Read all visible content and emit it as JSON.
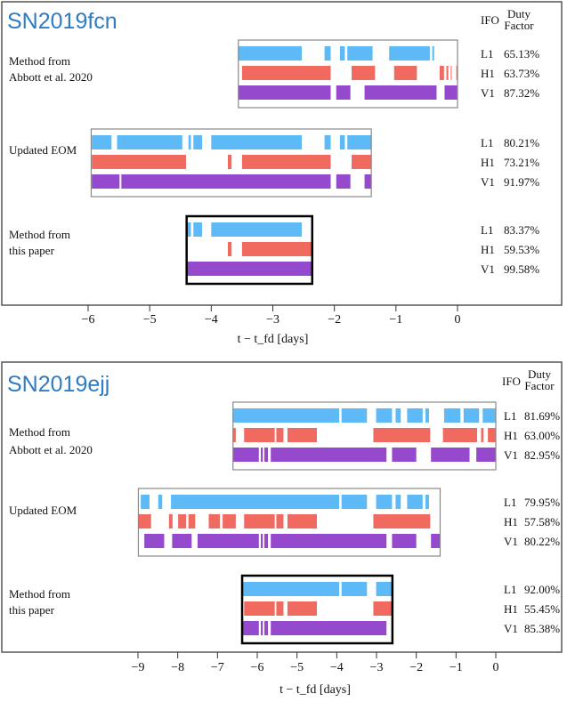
{
  "colors": {
    "L1": "#4db3f5",
    "H1": "#ee5a4e",
    "V1": "#8a35c6",
    "title": "#2f7bc4"
  },
  "chart_data": [
    {
      "type": "timeline",
      "title": "SN2019fcn",
      "xlabel": "t − t_fd [days]",
      "xlim": [
        -6,
        0
      ],
      "xticks": [
        "−6",
        "−5",
        "−4",
        "−3",
        "−2",
        "−1",
        "0"
      ],
      "header": {
        "ifo": "IFO",
        "duty": "Duty",
        "factor": "Factor"
      },
      "methods": [
        {
          "label": [
            "Method from",
            "Abbott et al. 2020"
          ],
          "window": [
            -3.56,
            0
          ],
          "highlight": false,
          "rows": [
            {
              "ifo": "L1",
              "duty": "65.13%",
              "segments": [
                [
                  -3.56,
                  -2.53
                ],
                [
                  -2.16,
                  -2.06
                ],
                [
                  -1.91,
                  -1.83
                ],
                [
                  -1.79,
                  -1.38
                ],
                [
                  -1.11,
                  -0.45
                ],
                [
                  -0.41,
                  -0.38
                ]
              ]
            },
            {
              "ifo": "H1",
              "duty": "63.73%",
              "segments": [
                [
                  -3.5,
                  -2.06
                ],
                [
                  -1.72,
                  -1.34
                ],
                [
                  -1.03,
                  -0.66
                ],
                [
                  -0.29,
                  -0.22
                ],
                [
                  -0.18,
                  -0.15
                ],
                [
                  -0.11,
                  -0.1
                ],
                [
                  -0.02,
                  0
                ]
              ]
            },
            {
              "ifo": "V1",
              "duty": "87.32%",
              "segments": [
                [
                  -3.56,
                  -2.06
                ],
                [
                  -1.97,
                  -1.74
                ],
                [
                  -1.51,
                  -0.34
                ],
                [
                  -0.21,
                  0
                ]
              ]
            }
          ]
        },
        {
          "label": [
            "Updated EOM"
          ],
          "window": [
            -5.95,
            -1.4
          ],
          "highlight": false,
          "rows": [
            {
              "ifo": "L1",
              "duty": "80.21%",
              "segments": [
                [
                  -5.94,
                  -5.62
                ],
                [
                  -5.53,
                  -4.47
                ],
                [
                  -4.37,
                  -4.33
                ],
                [
                  -4.29,
                  -4.15
                ],
                [
                  -4.0,
                  -2.53
                ],
                [
                  -2.16,
                  -2.06
                ],
                [
                  -1.91,
                  -1.83
                ],
                [
                  -1.79,
                  -1.4
                ]
              ]
            },
            {
              "ifo": "H1",
              "duty": "73.21%",
              "segments": [
                [
                  -5.94,
                  -4.41
                ],
                [
                  -3.73,
                  -3.67
                ],
                [
                  -3.5,
                  -2.06
                ],
                [
                  -1.72,
                  -1.4
                ]
              ]
            },
            {
              "ifo": "V1",
              "duty": "91.97%",
              "segments": [
                [
                  -5.94,
                  -5.49
                ],
                [
                  -5.46,
                  -2.06
                ],
                [
                  -1.97,
                  -1.74
                ],
                [
                  -1.51,
                  -1.4
                ]
              ]
            }
          ]
        },
        {
          "label": [
            "Method from",
            "this paper"
          ],
          "window": [
            -4.4,
            -2.36
          ],
          "highlight": true,
          "rows": [
            {
              "ifo": "L1",
              "duty": "83.37%",
              "segments": [
                [
                  -4.4,
                  -4.33
                ],
                [
                  -4.29,
                  -4.15
                ],
                [
                  -4.0,
                  -2.53
                ]
              ]
            },
            {
              "ifo": "H1",
              "duty": "59.53%",
              "segments": [
                [
                  -3.73,
                  -3.67
                ],
                [
                  -3.5,
                  -2.36
                ]
              ]
            },
            {
              "ifo": "V1",
              "duty": "99.58%",
              "segments": [
                [
                  -4.4,
                  -2.36
                ]
              ]
            }
          ]
        }
      ]
    },
    {
      "type": "timeline",
      "title": "SN2019ejj",
      "xlabel": "t − t_fd [days]",
      "xlim": [
        -9,
        0
      ],
      "xticks": [
        "−9",
        "−8",
        "−7",
        "−6",
        "−5",
        "−4",
        "−3",
        "−2",
        "−1",
        "0"
      ],
      "header": {
        "ifo": "IFO",
        "duty": "Duty",
        "factor": "Factor"
      },
      "methods": [
        {
          "label": [
            "Method from",
            "Abbott et al. 2020"
          ],
          "window": [
            -6.61,
            0
          ],
          "highlight": false,
          "rows": [
            {
              "ifo": "L1",
              "duty": "81.69%",
              "segments": [
                [
                  -6.61,
                  -3.94
                ],
                [
                  -3.88,
                  -3.24
                ],
                [
                  -3.01,
                  -2.61
                ],
                [
                  -2.52,
                  -2.39
                ],
                [
                  -2.23,
                  -1.84
                ],
                [
                  -1.77,
                  -1.68
                ],
                [
                  -1.3,
                  -0.89
                ],
                [
                  -0.81,
                  -0.42
                ],
                [
                  -0.33,
                  0
                ]
              ]
            },
            {
              "ifo": "H1",
              "duty": "63.00%",
              "segments": [
                [
                  -6.61,
                  -6.54
                ],
                [
                  -6.33,
                  -5.56
                ],
                [
                  -5.52,
                  -5.34
                ],
                [
                  -5.24,
                  -4.5
                ],
                [
                  -3.08,
                  -1.65
                ],
                [
                  -1.33,
                  -0.47
                ],
                [
                  -0.37,
                  -0.31
                ],
                [
                  -0.2,
                  0
                ]
              ]
            },
            {
              "ifo": "V1",
              "duty": "82.95%",
              "segments": [
                [
                  -6.61,
                  -5.96
                ],
                [
                  -5.91,
                  -5.86
                ],
                [
                  -5.82,
                  -5.73
                ],
                [
                  -5.66,
                  -2.75
                ],
                [
                  -2.61,
                  -2.0
                ],
                [
                  -1.63,
                  -0.66
                ],
                [
                  -0.49,
                  0
                ]
              ]
            }
          ]
        },
        {
          "label": [
            "Updated EOM"
          ],
          "window": [
            -8.99,
            -1.4
          ],
          "highlight": false,
          "rows": [
            {
              "ifo": "L1",
              "duty": "79.95%",
              "segments": [
                [
                  -8.93,
                  -8.71
                ],
                [
                  -8.49,
                  -8.39
                ],
                [
                  -8.17,
                  -3.94
                ],
                [
                  -3.88,
                  -3.24
                ],
                [
                  -3.01,
                  -2.61
                ],
                [
                  -2.52,
                  -2.39
                ],
                [
                  -2.23,
                  -1.84
                ],
                [
                  -1.77,
                  -1.68
                ]
              ]
            },
            {
              "ifo": "H1",
              "duty": "57.58%",
              "segments": [
                [
                  -8.99,
                  -8.67
                ],
                [
                  -8.22,
                  -8.13
                ],
                [
                  -7.99,
                  -7.79
                ],
                [
                  -7.73,
                  -7.56
                ],
                [
                  -7.22,
                  -6.94
                ],
                [
                  -6.87,
                  -6.54
                ],
                [
                  -6.33,
                  -5.56
                ],
                [
                  -5.52,
                  -5.34
                ],
                [
                  -5.24,
                  -4.5
                ],
                [
                  -3.08,
                  -1.65
                ]
              ]
            },
            {
              "ifo": "V1",
              "duty": "80.22%",
              "segments": [
                [
                  -8.84,
                  -8.34
                ],
                [
                  -8.14,
                  -7.65
                ],
                [
                  -7.5,
                  -5.96
                ],
                [
                  -5.91,
                  -5.86
                ],
                [
                  -5.82,
                  -5.73
                ],
                [
                  -5.66,
                  -2.75
                ],
                [
                  -2.61,
                  -2.0
                ],
                [
                  -1.63,
                  -1.4
                ]
              ]
            }
          ]
        },
        {
          "label": [
            "Method from",
            "this paper"
          ],
          "window": [
            -6.38,
            -2.6
          ],
          "highlight": true,
          "rows": [
            {
              "ifo": "L1",
              "duty": "92.00%",
              "segments": [
                [
                  -6.38,
                  -3.94
                ],
                [
                  -3.88,
                  -3.24
                ],
                [
                  -3.01,
                  -2.6
                ]
              ]
            },
            {
              "ifo": "H1",
              "duty": "55.45%",
              "segments": [
                [
                  -6.33,
                  -5.56
                ],
                [
                  -5.52,
                  -5.34
                ],
                [
                  -5.24,
                  -4.5
                ],
                [
                  -3.08,
                  -2.6
                ]
              ]
            },
            {
              "ifo": "V1",
              "duty": "85.38%",
              "segments": [
                [
                  -6.38,
                  -5.96
                ],
                [
                  -5.91,
                  -5.86
                ],
                [
                  -5.82,
                  -5.73
                ],
                [
                  -5.66,
                  -2.75
                ]
              ]
            }
          ]
        }
      ]
    }
  ]
}
